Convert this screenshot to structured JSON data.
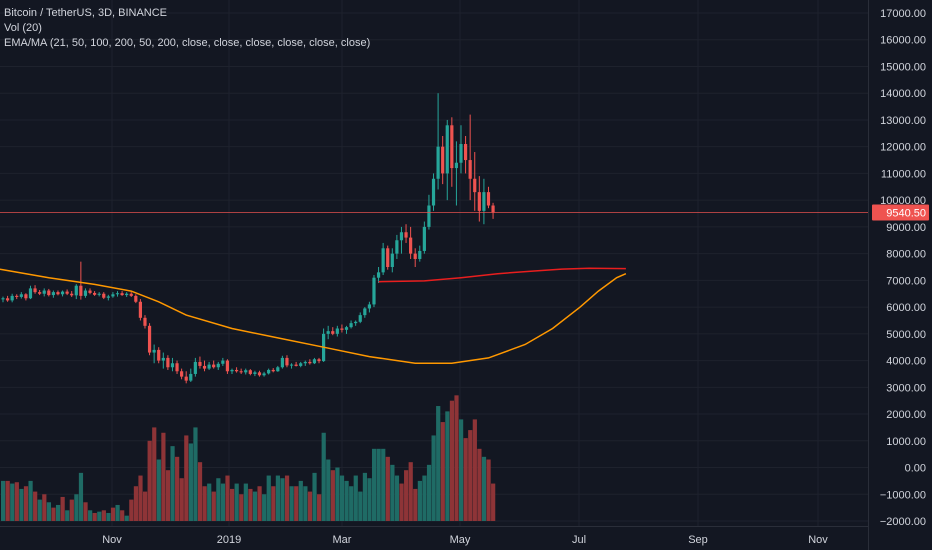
{
  "legend": {
    "symbol_line": "Bitcoin / TetherUS, 3D, BINANCE",
    "volume_line": "Vol (20)",
    "ma_line": "EMA/MA (21, 50, 100, 200, 50, 200, close, close, close, close, close, close)"
  },
  "price_axis": {
    "ticks": [
      "17000.00",
      "16000.00",
      "15000.00",
      "14000.00",
      "13000.00",
      "12000.00",
      "11000.00",
      "10000.00",
      "9000.00",
      "8000.00",
      "7000.00",
      "6000.00",
      "5000.00",
      "4000.00",
      "3000.00",
      "2000.00",
      "1000.00",
      "0.00",
      "−1000.00",
      "−2000.00"
    ],
    "current_price_label": "9540.50"
  },
  "time_axis": {
    "labels": [
      "Nov",
      "2019",
      "Mar",
      "May",
      "Jul",
      "Sep",
      "Nov"
    ]
  },
  "colors": {
    "background": "#131722",
    "grid": "#1e222d",
    "up": "#26a69a",
    "down": "#ef5350",
    "vol_up": "#1f6b65",
    "vol_down": "#8e3437",
    "ema_orange": "#ff9800",
    "ma_red": "#e91e1e",
    "axis_text": "#d1d4dc"
  },
  "chart_data": {
    "type": "candlestick",
    "title": "Bitcoin / TetherUS, 3D, BINANCE",
    "ylim": [
      -2000,
      17000
    ],
    "x_range_bars": [
      0,
      175
    ],
    "grid": true,
    "current_price": 9540.5,
    "candles": [
      [
        6290,
        6390,
        6180,
        6330
      ],
      [
        6330,
        6420,
        6200,
        6250
      ],
      [
        6250,
        6500,
        6180,
        6420
      ],
      [
        6420,
        6480,
        6300,
        6380
      ],
      [
        6380,
        6560,
        6320,
        6480
      ],
      [
        6480,
        6520,
        6250,
        6330
      ],
      [
        6330,
        6800,
        6300,
        6700
      ],
      [
        6700,
        6820,
        6500,
        6560
      ],
      [
        6560,
        6640,
        6450,
        6500
      ],
      [
        6500,
        6700,
        6400,
        6620
      ],
      [
        6620,
        6680,
        6400,
        6450
      ],
      [
        6450,
        6620,
        6350,
        6560
      ],
      [
        6560,
        6620,
        6440,
        6480
      ],
      [
        6480,
        6620,
        6400,
        6580
      ],
      [
        6580,
        6660,
        6450,
        6500
      ],
      [
        6500,
        6600,
        6380,
        6440
      ],
      [
        6440,
        6860,
        6300,
        6800
      ],
      [
        6800,
        7700,
        6280,
        6420
      ],
      [
        6420,
        6700,
        6350,
        6620
      ],
      [
        6620,
        6700,
        6480,
        6530
      ],
      [
        6530,
        6600,
        6420,
        6460
      ],
      [
        6460,
        6560,
        6400,
        6500
      ],
      [
        6500,
        6560,
        6300,
        6350
      ],
      [
        6350,
        6460,
        6250,
        6400
      ],
      [
        6400,
        6560,
        6350,
        6480
      ],
      [
        6480,
        6600,
        6390,
        6520
      ],
      [
        6520,
        6600,
        6420,
        6450
      ],
      [
        6450,
        6560,
        6380,
        6500
      ],
      [
        6500,
        6560,
        6380,
        6420
      ],
      [
        6420,
        6480,
        6150,
        6200
      ],
      [
        6200,
        6300,
        5500,
        5600
      ],
      [
        5600,
        5700,
        5200,
        5300
      ],
      [
        5300,
        5400,
        4200,
        4300
      ],
      [
        4300,
        4600,
        3900,
        4400
      ],
      [
        4400,
        4500,
        3900,
        4000
      ],
      [
        4000,
        4300,
        3700,
        4100
      ],
      [
        4100,
        4200,
        3650,
        3750
      ],
      [
        3750,
        4100,
        3600,
        3900
      ],
      [
        3900,
        4000,
        3500,
        3600
      ],
      [
        3600,
        3700,
        3300,
        3400
      ],
      [
        3400,
        3600,
        3150,
        3250
      ],
      [
        3250,
        3700,
        3200,
        3500
      ],
      [
        3500,
        4100,
        3400,
        3950
      ],
      [
        3950,
        4150,
        3700,
        3800
      ],
      [
        3800,
        4000,
        3600,
        3700
      ],
      [
        3700,
        3950,
        3650,
        3850
      ],
      [
        3850,
        4000,
        3700,
        3750
      ],
      [
        3750,
        3950,
        3650,
        3880
      ],
      [
        3880,
        4100,
        3800,
        4000
      ],
      [
        4000,
        4050,
        3500,
        3600
      ],
      [
        3600,
        3700,
        3500,
        3650
      ],
      [
        3650,
        3750,
        3550,
        3600
      ],
      [
        3600,
        3700,
        3500,
        3560
      ],
      [
        3560,
        3700,
        3480,
        3640
      ],
      [
        3640,
        3680,
        3450,
        3500
      ],
      [
        3500,
        3620,
        3420,
        3560
      ],
      [
        3560,
        3620,
        3400,
        3450
      ],
      [
        3450,
        3580,
        3400,
        3520
      ],
      [
        3520,
        3700,
        3480,
        3650
      ],
      [
        3650,
        3720,
        3560,
        3600
      ],
      [
        3600,
        3800,
        3580,
        3750
      ],
      [
        3750,
        4180,
        3700,
        4100
      ],
      [
        4100,
        4200,
        3750,
        3820
      ],
      [
        3820,
        3900,
        3700,
        3850
      ],
      [
        3850,
        3950,
        3780,
        3800
      ],
      [
        3800,
        3950,
        3750,
        3900
      ],
      [
        3900,
        4000,
        3800,
        3950
      ],
      [
        3950,
        4050,
        3850,
        3900
      ],
      [
        3900,
        4100,
        3870,
        4050
      ],
      [
        4050,
        4100,
        3900,
        3980
      ],
      [
        3980,
        5200,
        3950,
        5000
      ],
      [
        5000,
        5300,
        4800,
        5100
      ],
      [
        5100,
        5250,
        4950,
        5000
      ],
      [
        5000,
        5300,
        4900,
        5200
      ],
      [
        5200,
        5350,
        5050,
        5150
      ],
      [
        5150,
        5300,
        5000,
        5250
      ],
      [
        5250,
        5500,
        5200,
        5400
      ],
      [
        5400,
        5500,
        5300,
        5450
      ],
      [
        5450,
        5800,
        5400,
        5700
      ],
      [
        5700,
        6000,
        5600,
        5950
      ],
      [
        5950,
        6200,
        5800,
        6100
      ],
      [
        6100,
        7200,
        6000,
        7100
      ],
      [
        7100,
        7500,
        6900,
        7300
      ],
      [
        7300,
        8400,
        7200,
        8200
      ],
      [
        8200,
        8300,
        7400,
        7500
      ],
      [
        7500,
        8200,
        7300,
        8000
      ],
      [
        8000,
        8700,
        7800,
        8500
      ],
      [
        8500,
        9000,
        8000,
        8800
      ],
      [
        8800,
        9100,
        8400,
        8600
      ],
      [
        8600,
        9000,
        7800,
        8000
      ],
      [
        8000,
        8200,
        7500,
        7800
      ],
      [
        7800,
        8300,
        7700,
        8100
      ],
      [
        8100,
        9200,
        8000,
        9000
      ],
      [
        9000,
        10200,
        8900,
        9800
      ],
      [
        9800,
        11000,
        9600,
        10800
      ],
      [
        10800,
        14000,
        10400,
        12000
      ],
      [
        12000,
        12400,
        10600,
        11000
      ],
      [
        11000,
        13000,
        10000,
        12800
      ],
      [
        12800,
        13100,
        10500,
        11200
      ],
      [
        11200,
        12200,
        9800,
        11400
      ],
      [
        11400,
        12800,
        11000,
        12100
      ],
      [
        12100,
        12400,
        11000,
        11500
      ],
      [
        11500,
        13200,
        10000,
        10800
      ],
      [
        10800,
        11800,
        9600,
        10300
      ],
      [
        10300,
        10900,
        9200,
        9600
      ],
      [
        9600,
        10800,
        9100,
        10300
      ],
      [
        10300,
        10500,
        9700,
        9800
      ],
      [
        9800,
        9900,
        9300,
        9540
      ]
    ],
    "volume": [
      {
        "v": -500,
        "up": true
      },
      {
        "v": -500,
        "up": false
      },
      {
        "v": -600,
        "up": true
      },
      {
        "v": -550,
        "up": false
      },
      {
        "v": -800,
        "up": true
      },
      {
        "v": -700,
        "up": false
      },
      {
        "v": -500,
        "up": true
      },
      {
        "v": -900,
        "up": false
      },
      {
        "v": -1200,
        "up": true
      },
      {
        "v": -1000,
        "up": false
      },
      {
        "v": -1300,
        "up": true
      },
      {
        "v": -1500,
        "up": false
      },
      {
        "v": -1400,
        "up": true
      },
      {
        "v": -1100,
        "up": false
      },
      {
        "v": -1600,
        "up": true
      },
      {
        "v": -1200,
        "up": false
      },
      {
        "v": -1000,
        "up": true
      },
      {
        "v": -200,
        "up": true
      },
      {
        "v": -1300,
        "up": false
      },
      {
        "v": -1600,
        "up": true
      },
      {
        "v": -1700,
        "up": false
      },
      {
        "v": -1650,
        "up": true
      },
      {
        "v": -1600,
        "up": false
      },
      {
        "v": -1700,
        "up": true
      },
      {
        "v": -1500,
        "up": false
      },
      {
        "v": -1400,
        "up": true
      },
      {
        "v": -1600,
        "up": false
      },
      {
        "v": -1800,
        "up": true
      },
      {
        "v": -1200,
        "up": false
      },
      {
        "v": -700,
        "up": false
      },
      {
        "v": -300,
        "up": false
      },
      {
        "v": -900,
        "up": false
      },
      {
        "v": 1000,
        "up": false
      },
      {
        "v": 1500,
        "up": false
      },
      {
        "v": 300,
        "up": true
      },
      {
        "v": 1300,
        "up": false
      },
      {
        "v": -100,
        "up": false
      },
      {
        "v": 800,
        "up": true
      },
      {
        "v": 400,
        "up": false
      },
      {
        "v": -400,
        "up": false
      },
      {
        "v": 1200,
        "up": false
      },
      {
        "v": 900,
        "up": true
      },
      {
        "v": 1500,
        "up": true
      },
      {
        "v": 200,
        "up": false
      },
      {
        "v": -700,
        "up": false
      },
      {
        "v": -600,
        "up": true
      },
      {
        "v": -900,
        "up": false
      },
      {
        "v": -400,
        "up": true
      },
      {
        "v": -600,
        "up": true
      },
      {
        "v": -300,
        "up": false
      },
      {
        "v": -800,
        "up": false
      },
      {
        "v": -600,
        "up": true
      },
      {
        "v": -1000,
        "up": false
      },
      {
        "v": -600,
        "up": true
      },
      {
        "v": -800,
        "up": false
      },
      {
        "v": -900,
        "up": true
      },
      {
        "v": -700,
        "up": false
      },
      {
        "v": -1000,
        "up": true
      },
      {
        "v": -300,
        "up": true
      },
      {
        "v": -700,
        "up": false
      },
      {
        "v": -300,
        "up": true
      },
      {
        "v": -400,
        "up": true
      },
      {
        "v": -300,
        "up": false
      },
      {
        "v": -700,
        "up": true
      },
      {
        "v": -700,
        "up": false
      },
      {
        "v": -500,
        "up": true
      },
      {
        "v": -700,
        "up": true
      },
      {
        "v": -900,
        "up": false
      },
      {
        "v": -200,
        "up": true
      },
      {
        "v": -1000,
        "up": false
      },
      {
        "v": 1300,
        "up": true
      },
      {
        "v": 300,
        "up": true
      },
      {
        "v": -100,
        "up": false
      },
      {
        "v": 0,
        "up": true
      },
      {
        "v": -300,
        "up": true
      },
      {
        "v": -500,
        "up": true
      },
      {
        "v": -700,
        "up": true
      },
      {
        "v": -300,
        "up": true
      },
      {
        "v": -900,
        "up": true
      },
      {
        "v": -200,
        "up": true
      },
      {
        "v": -400,
        "up": true
      },
      {
        "v": 700,
        "up": true
      },
      {
        "v": 700,
        "up": true
      },
      {
        "v": 700,
        "up": true
      },
      {
        "v": 400,
        "up": false
      },
      {
        "v": 100,
        "up": true
      },
      {
        "v": -300,
        "up": true
      },
      {
        "v": -600,
        "up": false
      },
      {
        "v": -100,
        "up": false
      },
      {
        "v": 200,
        "up": false
      },
      {
        "v": -800,
        "up": false
      },
      {
        "v": -500,
        "up": true
      },
      {
        "v": -300,
        "up": true
      },
      {
        "v": 100,
        "up": true
      },
      {
        "v": 1200,
        "up": true
      },
      {
        "v": 2300,
        "up": true
      },
      {
        "v": 1700,
        "up": false
      },
      {
        "v": 2100,
        "up": true
      },
      {
        "v": 2500,
        "up": false
      },
      {
        "v": 2700,
        "up": false
      },
      {
        "v": 1800,
        "up": true
      },
      {
        "v": 1100,
        "up": false
      },
      {
        "v": 1400,
        "up": false
      },
      {
        "v": 1800,
        "up": false
      },
      {
        "v": 700,
        "up": false
      },
      {
        "v": 400,
        "up": true
      },
      {
        "v": 300,
        "up": false
      },
      {
        "v": -600,
        "up": false
      }
    ],
    "ema_orange": [
      [
        -4,
        7500
      ],
      [
        0,
        7400
      ],
      [
        10,
        7100
      ],
      [
        20,
        6850
      ],
      [
        28,
        6600
      ],
      [
        34,
        6200
      ],
      [
        40,
        5700
      ],
      [
        50,
        5200
      ],
      [
        60,
        4850
      ],
      [
        70,
        4500
      ],
      [
        80,
        4150
      ],
      [
        90,
        3900
      ],
      [
        98,
        3900
      ],
      [
        106,
        4100
      ],
      [
        114,
        4600
      ],
      [
        120,
        5200
      ],
      [
        126,
        6000
      ],
      [
        130,
        6600
      ],
      [
        134,
        7100
      ],
      [
        136,
        7250
      ]
    ],
    "ma_red": [
      [
        82,
        6950
      ],
      [
        92,
        6980
      ],
      [
        100,
        7100
      ],
      [
        108,
        7250
      ],
      [
        116,
        7350
      ],
      [
        122,
        7420
      ],
      [
        128,
        7450
      ],
      [
        136,
        7440
      ]
    ]
  }
}
